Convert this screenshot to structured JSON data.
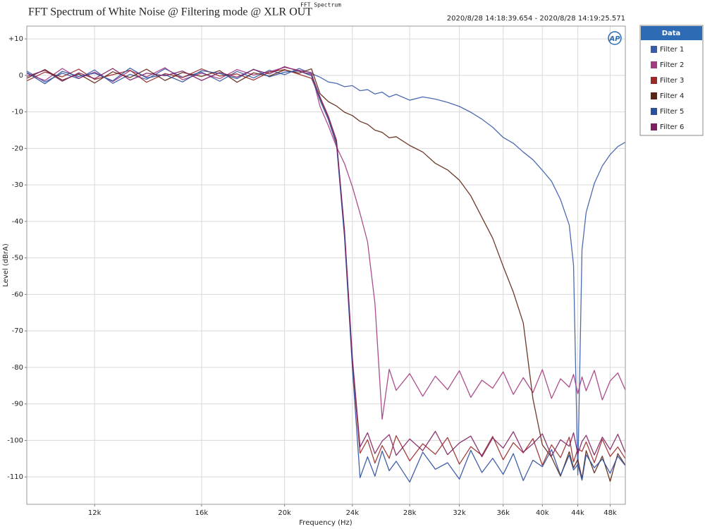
{
  "chart_data": {
    "type": "line",
    "title": "FFT Spectrum of White Noise @ Filtering mode @ XLR OUT",
    "subtitle": "FFT Spectrum",
    "time_range": "2020/8/28 14:18:39.654 - 2020/8/28 14:19:25.571",
    "logo": "AP",
    "x_label": "Frequency (Hz)",
    "y_label": "Level (dBrA)",
    "xscale": "log",
    "xlim": [
      10000,
      50000
    ],
    "ylim": [
      -117.5,
      13.5
    ],
    "xticks": [
      {
        "value": 12000,
        "label": "12k"
      },
      {
        "value": 16000,
        "label": "16k"
      },
      {
        "value": 20000,
        "label": "20k"
      },
      {
        "value": 24000,
        "label": "24k"
      },
      {
        "value": 28000,
        "label": "28k"
      },
      {
        "value": 32000,
        "label": "32k"
      },
      {
        "value": 36000,
        "label": "36k"
      },
      {
        "value": 40000,
        "label": "40k"
      },
      {
        "value": 44000,
        "label": "44k"
      },
      {
        "value": 48000,
        "label": "48k"
      }
    ],
    "yticks": [
      {
        "value": 10,
        "label": "+10"
      },
      0,
      -10,
      -20,
      -30,
      -40,
      -50,
      -60,
      -70,
      -80,
      -90,
      -100,
      -110
    ],
    "grid": true,
    "legend": "right",
    "legend_title": "Data",
    "x": [
      10000,
      10500,
      11000,
      11500,
      12000,
      12600,
      13200,
      13800,
      14500,
      15200,
      16000,
      16800,
      17600,
      18400,
      19200,
      20000,
      20800,
      21500,
      22000,
      22500,
      23000,
      23500,
      24000,
      24500,
      25000,
      25500,
      26000,
      26500,
      27000,
      28000,
      29000,
      30000,
      31000,
      32000,
      33000,
      34000,
      35000,
      36000,
      37000,
      38000,
      39000,
      40000,
      41000,
      42000,
      43000,
      43500,
      44000,
      44500,
      45000,
      46000,
      47000,
      48000,
      49000,
      50000
    ],
    "series": [
      {
        "name": "Filter 1",
        "color": "#3a5ba8",
        "values": [
          1.2,
          -1.8,
          0.6,
          -0.9,
          1.5,
          -2.2,
          0.3,
          -1.1,
          1.8,
          -0.5,
          0.9,
          -1.6,
          1.1,
          -0.7,
          1.4,
          0.2,
          1.9,
          0.5,
          -0.5,
          -1.8,
          -2.2,
          -3.1,
          -2.8,
          -4.2,
          -3.9,
          -5.1,
          -4.6,
          -5.9,
          -5.2,
          -6.8,
          -5.9,
          -6.5,
          -7.4,
          -8.5,
          -10.1,
          -12.0,
          -14.2,
          -17.0,
          -18.6,
          -21.0,
          -23.1,
          -26.0,
          -29.0,
          -34.0,
          -41.0,
          -52.0,
          -109.5,
          -47.8,
          -37.5,
          -29.6,
          -24.8,
          -21.7,
          -19.5,
          -18.3
        ]
      },
      {
        "name": "Filter 2",
        "color": "#a23b82",
        "values": [
          0.5,
          -1.4,
          1.9,
          -0.8,
          0.9,
          -1.7,
          1.3,
          -0.4,
          2.1,
          -1.2,
          0.6,
          -0.9,
          1.6,
          0.1,
          1.0,
          2.2,
          1.4,
          0.8,
          -8.5,
          -13.8,
          -19.6,
          -24.2,
          -30.5,
          -37.8,
          -45.6,
          -62.4,
          -94.2,
          -80.5,
          -86.3,
          -81.7,
          -87.9,
          -82.4,
          -86.1,
          -80.9,
          -88.2,
          -83.5,
          -85.7,
          -81.2,
          -87.4,
          -82.8,
          -86.9,
          -80.6,
          -88.5,
          -83.1,
          -85.4,
          -81.9,
          -87.2,
          -82.6,
          -86.4,
          -80.8,
          -88.9,
          -83.7,
          -81.5,
          -86.2
        ]
      },
      {
        "name": "Filter 3",
        "color": "#9a2a2a",
        "values": [
          -1.5,
          0.9,
          -0.4,
          1.7,
          -1.1,
          0.2,
          1.4,
          -1.9,
          0.5,
          -0.6,
          1.8,
          -0.2,
          0.4,
          -1.3,
          0.9,
          1.6,
          0.3,
          -0.8,
          -6.2,
          -11.5,
          -18.4,
          -43.2,
          -78.6,
          -103.5,
          -99.8,
          -106.2,
          -101.4,
          -104.9,
          -98.7,
          -105.6,
          -100.9,
          -103.8,
          -99.2,
          -106.5,
          -101.7,
          -104.1,
          -98.9,
          -105.3,
          -100.6,
          -103.4,
          -99.5,
          -106.8,
          -101.2,
          -104.7,
          -99.1,
          -105.9,
          -102.3,
          -103.0,
          -100.4,
          -106.1,
          -99.7,
          -104.4,
          -101.8,
          -105.0
        ]
      },
      {
        "name": "Filter 4",
        "color": "#5c2412",
        "values": [
          -0.8,
          1.6,
          -1.3,
          0.4,
          -2.1,
          1.0,
          -0.6,
          1.7,
          -1.4,
          0.8,
          -0.3,
          1.3,
          -1.9,
          0.7,
          -0.2,
          1.5,
          0.6,
          1.8,
          -5.0,
          -7.2,
          -8.4,
          -10.1,
          -11.0,
          -12.6,
          -13.4,
          -15.0,
          -15.6,
          -17.1,
          -16.8,
          -19.2,
          -21.0,
          -24.1,
          -25.9,
          -28.7,
          -33.0,
          -38.9,
          -44.6,
          -52.3,
          -59.4,
          -67.8,
          -88.6,
          -101.2,
          -104.6,
          -109.8,
          -103.1,
          -107.5,
          -105.2,
          -110.4,
          -102.8,
          -108.9,
          -104.3,
          -111.2,
          -103.6,
          -106.8
        ]
      },
      {
        "name": "Filter 5",
        "color": "#2c4f9e",
        "values": [
          0.8,
          -2.3,
          1.1,
          -0.3,
          0.6,
          -1.5,
          2.0,
          -0.7,
          0.2,
          -1.8,
          1.3,
          0.5,
          -0.9,
          1.7,
          -0.4,
          0.9,
          1.2,
          -0.1,
          -6.8,
          -12.1,
          -19.0,
          -44.5,
          -80.1,
          -110.2,
          -104.5,
          -109.8,
          -102.9,
          -108.3,
          -105.7,
          -111.4,
          -103.2,
          -107.9,
          -106.1,
          -110.6,
          -102.7,
          -108.8,
          -104.9,
          -109.3,
          -103.6,
          -111.0,
          -105.4,
          -107.2,
          -102.5,
          -109.6,
          -104.0,
          -108.1,
          -106.6,
          -110.9,
          -103.9,
          -107.5,
          -105.1,
          -109.0,
          -104.3,
          -106.9
        ]
      },
      {
        "name": "Filter 6",
        "color": "#7e1f62",
        "values": [
          -0.3,
          1.4,
          -1.6,
          0.7,
          -0.9,
          1.9,
          -1.3,
          0.6,
          -0.1,
          1.2,
          -1.4,
          0.8,
          -0.5,
          1.6,
          0.4,
          2.4,
          1.1,
          0.3,
          -5.9,
          -11.2,
          -17.8,
          -42.6,
          -77.3,
          -101.8,
          -97.9,
          -103.6,
          -100.2,
          -98.4,
          -104.1,
          -99.6,
          -102.8,
          -97.5,
          -103.9,
          -100.7,
          -98.8,
          -104.5,
          -99.3,
          -102.1,
          -97.6,
          -103.2,
          -100.9,
          -98.2,
          -104.3,
          -99.8,
          -101.6,
          -97.9,
          -103.7,
          -100.3,
          -98.6,
          -104.0,
          -99.1,
          -102.5,
          -98.3,
          -103.4
        ]
      }
    ]
  }
}
